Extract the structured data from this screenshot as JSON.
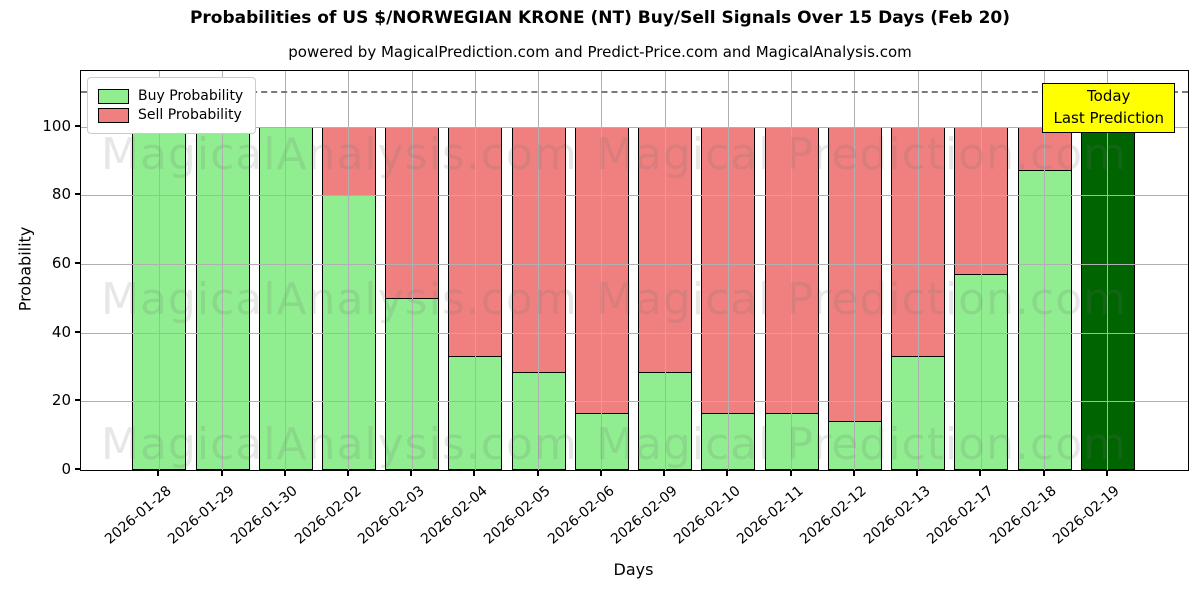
{
  "title": "Probabilities of US $/NORWEGIAN KRONE (NT) Buy/Sell Signals Over 15 Days (Feb 20)",
  "subtitle": "powered by MagicalPrediction.com and Predict-Price.com and MagicalAnalysis.com",
  "watermarks": {
    "left": "MagicalAnalysis.com",
    "right": "Magical Prediction.com"
  },
  "legend": {
    "items": [
      {
        "label": "Buy Probability",
        "color": "#90ee90"
      },
      {
        "label": "Sell Probability",
        "color": "#f08080"
      }
    ]
  },
  "annotation": {
    "lines": [
      "Today",
      "Last Prediction"
    ],
    "bg_color": "#ffff00"
  },
  "axes": {
    "xlabel": "Days",
    "ylabel": "Probability"
  },
  "chart_data": {
    "type": "bar",
    "stacked": true,
    "title": "Probabilities of US $/NORWEGIAN KRONE (NT) Buy/Sell Signals Over 15 Days (Feb 20)",
    "xlabel": "Days",
    "ylabel": "Probability",
    "categories": [
      "2026-01-28",
      "2026-01-29",
      "2026-01-30",
      "2026-02-02",
      "2026-02-03",
      "2026-02-04",
      "2026-02-05",
      "2026-02-06",
      "2026-02-09",
      "2026-02-10",
      "2026-02-11",
      "2026-02-12",
      "2026-02-13",
      "2026-02-17",
      "2026-02-18",
      "2026-02-19"
    ],
    "series": [
      {
        "name": "Buy Probability",
        "color": "#90ee90",
        "values": [
          100,
          100,
          100,
          80,
          50,
          33.3,
          28.6,
          16.7,
          28.6,
          16.7,
          16.7,
          14.3,
          33.3,
          57.1,
          87.5,
          100
        ]
      },
      {
        "name": "Sell Probability",
        "color": "#f08080",
        "values": [
          0,
          0,
          0,
          20,
          50,
          66.7,
          71.4,
          83.3,
          71.4,
          83.3,
          83.3,
          85.7,
          66.7,
          42.9,
          12.5,
          0
        ]
      }
    ],
    "today_bar": {
      "index": 15,
      "color": "#006400",
      "label_lines": [
        "Today",
        "Last Prediction"
      ]
    },
    "yticks": [
      0,
      20,
      40,
      60,
      80,
      100
    ],
    "ylim": [
      0,
      116.2
    ],
    "dashed_guide_y": 110,
    "grid": true,
    "legend_position": "upper left",
    "bar_edge_color": "#000000"
  }
}
